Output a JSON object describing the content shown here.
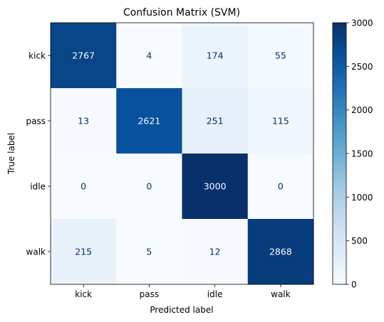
{
  "chart_data": {
    "type": "heatmap",
    "title": "Confusion Matrix (SVM)",
    "xlabel": "Predicted label",
    "ylabel": "True label",
    "x_categories": [
      "kick",
      "pass",
      "idle",
      "walk"
    ],
    "y_categories": [
      "kick",
      "pass",
      "idle",
      "walk"
    ],
    "values": [
      [
        2767,
        4,
        174,
        55
      ],
      [
        13,
        2621,
        251,
        115
      ],
      [
        0,
        0,
        3000,
        0
      ],
      [
        215,
        5,
        12,
        2868
      ]
    ],
    "colormap": "Blues",
    "vmin": 0,
    "vmax": 3000,
    "colorbar_ticks": [
      0,
      500,
      1000,
      1500,
      2000,
      2500,
      3000
    ],
    "colorbar_tick_labels": [
      "0",
      "500",
      "1000",
      "1500",
      "2000",
      "2500",
      "3000"
    ],
    "colors": {
      "low": "#f7fbff",
      "high": "#08306b",
      "dark_text": "#08306b",
      "light_text": "#f7fbff"
    }
  }
}
